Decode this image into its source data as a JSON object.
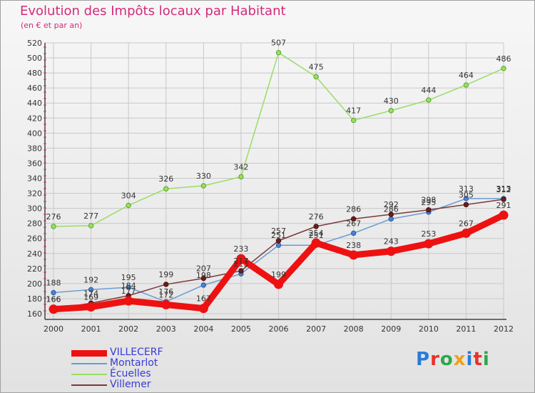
{
  "title": "Evolution des Impôts locaux par Habitant",
  "subtitle": "(en € et par an)",
  "logo": {
    "text": "Proxiti",
    "letter_colors": [
      "#2a7bd8",
      "#e8322c",
      "#2ca84a",
      "#f0a020",
      "#2a7bd8",
      "#e8322c",
      "#2ca84a"
    ]
  },
  "chart_data": {
    "type": "line",
    "x": [
      2000,
      2001,
      2002,
      2003,
      2004,
      2005,
      2006,
      2007,
      2008,
      2009,
      2010,
      2011,
      2012
    ],
    "ylim": [
      160,
      520
    ],
    "yticks": [
      160,
      180,
      200,
      220,
      240,
      260,
      280,
      300,
      320,
      340,
      360,
      380,
      400,
      420,
      440,
      460,
      480,
      500,
      520
    ],
    "grid": true,
    "legend_position": "bottom-left",
    "series": [
      {
        "name": "VILLECERF",
        "color": "#ee1111",
        "values": [
          166,
          169,
          177,
          172,
          167,
          233,
          199,
          254,
          238,
          243,
          253,
          267,
          291
        ]
      },
      {
        "name": "Montarlot",
        "color": "#6a9ad6",
        "values": [
          188,
          192,
          195,
          176,
          198,
          213,
          251,
          251,
          267,
          286,
          295,
          313,
          313
        ]
      },
      {
        "name": "Écuelles",
        "color": "#99dd66",
        "values": [
          276,
          277,
          304,
          326,
          330,
          342,
          507,
          475,
          417,
          430,
          444,
          464,
          486
        ]
      },
      {
        "name": "Villemer",
        "color": "#7a3a3a",
        "values": [
          166,
          174,
          184,
          199,
          207,
          217,
          257,
          276,
          286,
          292,
          298,
          305,
          312
        ]
      }
    ]
  }
}
